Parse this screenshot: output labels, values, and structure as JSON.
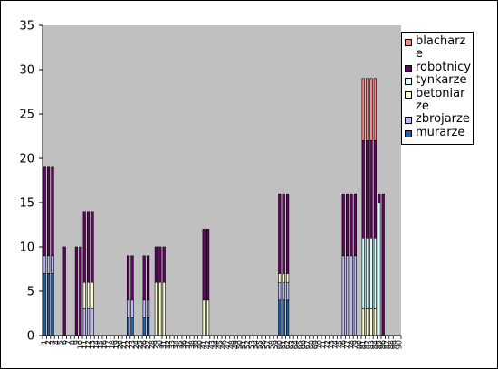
{
  "chart_data": {
    "type": "bar",
    "stacked": true,
    "title": "",
    "xlabel": "",
    "ylabel": "",
    "ylim": [
      0,
      35
    ],
    "yticks": [
      0,
      5,
      10,
      15,
      20,
      25,
      30,
      35
    ],
    "grid": false,
    "legend_position": "right",
    "plot_background": "#c0c0c0",
    "categories": [
      "1",
      "2",
      "3",
      "4",
      "5",
      "6",
      "7",
      "8",
      "9",
      "10",
      "11",
      "12",
      "13",
      "14",
      "15",
      "16",
      "17",
      "18",
      "19",
      "20",
      "21",
      "22",
      "23",
      "24",
      "25",
      "26",
      "27",
      "28",
      "29",
      "30",
      "31",
      "32",
      "33",
      "34",
      "35",
      "36",
      "37",
      "38",
      "39",
      "40",
      "41",
      "42",
      "43",
      "44",
      "45",
      "46",
      "47",
      "48",
      "49",
      "50",
      "51",
      "52",
      "53",
      "54",
      "55",
      "56",
      "57",
      "58",
      "59",
      "60",
      "61",
      "62",
      "63",
      "64",
      "65",
      "66",
      "67",
      "68",
      "69",
      "70",
      "71",
      "72",
      "73",
      "74",
      "75",
      "76",
      "77",
      "78",
      "79",
      "80",
      "81",
      "82",
      "83",
      "84",
      "85",
      "86",
      "87",
      "88",
      "89",
      "90"
    ],
    "series": [
      {
        "name": "murarze",
        "color": "#1f5fb0",
        "values": [
          7,
          7,
          7,
          0,
          0,
          0,
          0,
          0,
          0,
          0,
          0,
          0,
          0,
          0,
          0,
          0,
          0,
          0,
          0,
          0,
          0,
          2,
          2,
          0,
          0,
          2,
          2,
          0,
          0,
          0,
          0,
          0,
          0,
          0,
          0,
          0,
          0,
          0,
          0,
          0,
          0,
          0,
          0,
          0,
          0,
          0,
          0,
          0,
          0,
          0,
          0,
          0,
          0,
          0,
          0,
          0,
          0,
          0,
          0,
          4,
          4,
          4,
          0,
          0,
          0,
          0,
          0,
          0,
          0,
          0,
          0,
          0,
          0,
          0,
          0,
          0,
          0,
          0,
          0,
          0,
          0,
          0,
          0,
          0,
          0,
          0,
          0,
          0,
          0,
          0
        ]
      },
      {
        "name": "zbrojarze",
        "color": "#b8b8ff",
        "values": [
          2,
          2,
          2,
          0,
          0,
          0,
          0,
          0,
          0,
          0,
          3,
          3,
          3,
          0,
          0,
          0,
          0,
          0,
          0,
          0,
          0,
          2,
          2,
          0,
          0,
          2,
          2,
          0,
          0,
          0,
          0,
          0,
          0,
          0,
          0,
          0,
          0,
          0,
          0,
          0,
          0,
          0,
          0,
          0,
          0,
          0,
          0,
          0,
          0,
          0,
          0,
          0,
          0,
          0,
          0,
          0,
          0,
          0,
          0,
          2,
          2,
          2,
          0,
          0,
          0,
          0,
          0,
          0,
          0,
          0,
          0,
          0,
          0,
          0,
          0,
          9,
          9,
          9,
          9,
          0,
          0,
          0,
          0,
          0,
          0,
          0,
          0,
          0,
          0,
          0
        ]
      },
      {
        "name": "betoniarze",
        "color": "#ffffcc",
        "values": [
          0,
          0,
          0,
          0,
          0,
          0,
          0,
          0,
          0,
          0,
          3,
          3,
          3,
          0,
          0,
          0,
          0,
          0,
          0,
          0,
          0,
          0,
          0,
          0,
          0,
          0,
          0,
          0,
          6,
          6,
          6,
          0,
          0,
          0,
          0,
          0,
          0,
          0,
          0,
          0,
          4,
          4,
          0,
          0,
          0,
          0,
          0,
          0,
          0,
          0,
          0,
          0,
          0,
          0,
          0,
          0,
          0,
          0,
          0,
          1,
          1,
          1,
          0,
          0,
          0,
          0,
          0,
          0,
          0,
          0,
          0,
          0,
          0,
          0,
          0,
          0,
          0,
          0,
          0,
          0,
          3,
          3,
          3,
          3,
          0,
          0,
          0,
          0,
          0,
          0
        ]
      },
      {
        "name": "tynkarze",
        "color": "#ccffff",
        "values": [
          0,
          0,
          0,
          0,
          0,
          0,
          0,
          0,
          0,
          0,
          0,
          0,
          0,
          0,
          0,
          0,
          0,
          0,
          0,
          0,
          0,
          0,
          0,
          0,
          0,
          0,
          0,
          0,
          0,
          0,
          0,
          0,
          0,
          0,
          0,
          0,
          0,
          0,
          0,
          0,
          0,
          0,
          0,
          0,
          0,
          0,
          0,
          0,
          0,
          0,
          0,
          0,
          0,
          0,
          0,
          0,
          0,
          0,
          0,
          0,
          0,
          0,
          0,
          0,
          0,
          0,
          0,
          0,
          0,
          0,
          0,
          0,
          0,
          0,
          0,
          0,
          0,
          0,
          0,
          0,
          8,
          8,
          8,
          8,
          15,
          0,
          0,
          0,
          0,
          0
        ]
      },
      {
        "name": "robotnicy",
        "color": "#660066",
        "values": [
          10,
          10,
          10,
          0,
          0,
          10,
          0,
          0,
          10,
          10,
          8,
          8,
          8,
          0,
          0,
          0,
          0,
          0,
          0,
          0,
          0,
          5,
          5,
          0,
          0,
          5,
          5,
          0,
          4,
          4,
          4,
          0,
          0,
          0,
          0,
          0,
          0,
          0,
          0,
          0,
          8,
          8,
          0,
          0,
          0,
          0,
          0,
          0,
          0,
          0,
          0,
          0,
          0,
          0,
          0,
          0,
          0,
          0,
          0,
          9,
          9,
          9,
          0,
          0,
          0,
          0,
          0,
          0,
          0,
          0,
          0,
          0,
          0,
          0,
          0,
          7,
          7,
          7,
          7,
          0,
          11,
          11,
          11,
          11,
          1,
          16,
          0,
          0,
          0,
          0
        ]
      },
      {
        "name": "blacharze",
        "color": "#ff8080",
        "values": [
          0,
          0,
          0,
          0,
          0,
          0,
          0,
          0,
          0,
          0,
          0,
          0,
          0,
          0,
          0,
          0,
          0,
          0,
          0,
          0,
          0,
          0,
          0,
          0,
          0,
          0,
          0,
          0,
          0,
          0,
          0,
          0,
          0,
          0,
          0,
          0,
          0,
          0,
          0,
          0,
          0,
          0,
          0,
          0,
          0,
          0,
          0,
          0,
          0,
          0,
          0,
          0,
          0,
          0,
          0,
          0,
          0,
          0,
          0,
          0,
          0,
          0,
          0,
          0,
          0,
          0,
          0,
          0,
          0,
          0,
          0,
          0,
          0,
          0,
          0,
          0,
          0,
          0,
          0,
          0,
          7,
          7,
          7,
          7,
          0,
          0,
          0,
          0,
          0,
          0
        ]
      }
    ]
  },
  "legend": {
    "items": [
      {
        "label": "blacharze",
        "color": "#ff8080"
      },
      {
        "label": "robotnicy",
        "color": "#660066"
      },
      {
        "label": "tynkarze",
        "color": "#ccffff"
      },
      {
        "label": "betoniarze",
        "color": "#ffffcc"
      },
      {
        "label": "zbrojarze",
        "color": "#b8b8ff"
      },
      {
        "label": "murarze",
        "color": "#1f5fb0"
      }
    ]
  }
}
